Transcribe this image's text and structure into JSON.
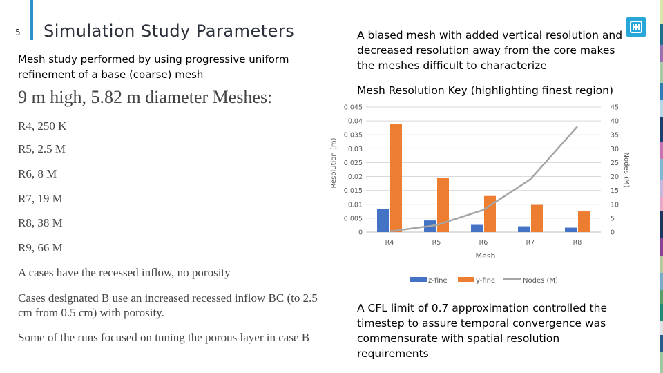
{
  "slide": {
    "number": "5",
    "title": "Simulation Study Parameters"
  },
  "intro": "Mesh study performed by using progressive uniform refinement of a base (coarse) mesh",
  "meshes": {
    "heading": "9 m high, 5.82 m diameter Meshes:",
    "items": [
      "R4, 250 K",
      "R5, 2.5 M",
      "R6, 8 M",
      "R7, 19 M",
      "R8, 38 M",
      "R9, 66 M"
    ]
  },
  "notes": [
    "A cases have the recessed inflow, no porosity",
    "Cases designated B  use an increased recessed inflow BC (to 2.5 cm from 0.5 cm) with porosity.",
    "Some of the runs focused on tuning the porous layer in case B"
  ],
  "right": {
    "biased_text": "A biased mesh with added vertical resolution and decreased resolution away from the core makes the meshes difficult to characterize",
    "cfl_text": "A CFL limit of 0.7 approximation controlled the timestep to assure temporal convergence was commensurate with spatial resolution requirements"
  },
  "colors": {
    "accent": "#2e8fc8",
    "z_fine": "#4472c4",
    "y_fine": "#ed7d31",
    "nodes": "#a5a5a5",
    "logo": "#27a6d8"
  },
  "icons": {
    "logo": "sandia-logo-icon"
  },
  "chart_data": {
    "type": "bar",
    "title": "Mesh Resolution Key (highlighting finest region)",
    "xlabel": "Mesh",
    "ylabel": "Resolution (m)",
    "y2label": "Nodes (M)",
    "categories": [
      "R4",
      "R5",
      "R6",
      "R7",
      "R8"
    ],
    "ylim": [
      0,
      0.045
    ],
    "yticks": [
      "0",
      "0.005",
      "0.01",
      "0.015",
      "0.02",
      "0.025",
      "0.03",
      "0.035",
      "0.04",
      "0.045"
    ],
    "y2lim": [
      0,
      45
    ],
    "y2ticks": [
      "0",
      "5",
      "10",
      "15",
      "20",
      "25",
      "30",
      "35",
      "40",
      "45"
    ],
    "grid": true,
    "legend_position": "bottom",
    "series": [
      {
        "name": "z-fine",
        "type": "bar",
        "axis": "left",
        "values": [
          0.0083,
          0.0042,
          0.0026,
          0.0021,
          0.0016
        ]
      },
      {
        "name": "y-fine",
        "type": "bar",
        "axis": "left",
        "values": [
          0.039,
          0.0195,
          0.013,
          0.0098,
          0.0076
        ]
      },
      {
        "name": "Nodes (M)",
        "type": "line",
        "axis": "right",
        "values": [
          0.25,
          2.5,
          8,
          19,
          38
        ]
      }
    ]
  }
}
